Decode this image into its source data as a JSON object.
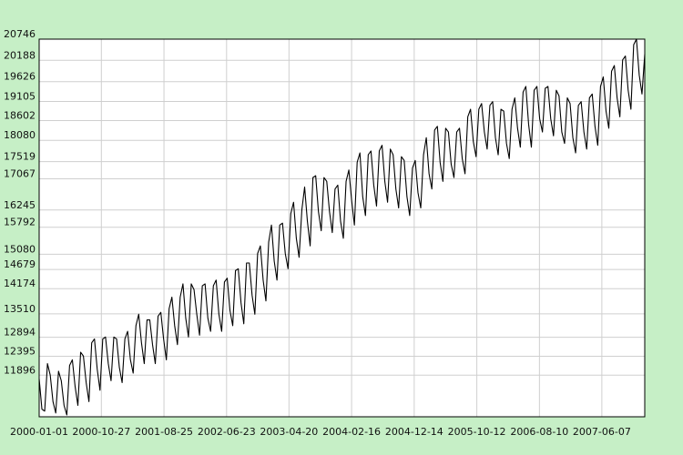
{
  "chart_data": {
    "type": "line",
    "title": "",
    "xlabel": "",
    "ylabel": "",
    "x_tick_labels": [
      "2000-01-01",
      "2000-10-27",
      "2001-08-25",
      "2002-06-23",
      "2003-04-20",
      "2004-02-16",
      "2004-12-14",
      "2005-10-12",
      "2006-08-10",
      "2007-06-07"
    ],
    "y_tick_labels": [
      20746,
      20188,
      19626,
      19105,
      18602,
      18080,
      17519,
      17067,
      16245,
      15792,
      15080,
      14679,
      14174,
      13510,
      12894,
      12395,
      11896
    ],
    "xlim": [
      "2000-01-01",
      "2007-12-31"
    ],
    "ylim": [
      10800,
      20746
    ],
    "grid": true,
    "series": [
      {
        "x_start": "2000-01-01",
        "x_end": "2007-12-31",
        "values": [
          11800,
          11000,
          10950,
          12200,
          11900,
          11200,
          10900,
          12000,
          11750,
          11100,
          10850,
          12150,
          12300,
          11600,
          11100,
          12500,
          12400,
          11700,
          11200,
          12750,
          12850,
          12050,
          11500,
          12850,
          12900,
          12200,
          11750,
          12900,
          12850,
          12100,
          11700,
          12850,
          13050,
          12300,
          11950,
          13200,
          13500,
          12750,
          12200,
          13350,
          13350,
          12700,
          12200,
          13450,
          13550,
          12850,
          12300,
          13650,
          13950,
          13200,
          12700,
          13950,
          14300,
          13400,
          12900,
          14300,
          14150,
          13500,
          12950,
          14250,
          14300,
          13400,
          13050,
          14250,
          14400,
          13500,
          13050,
          14350,
          14450,
          13600,
          13200,
          14650,
          14700,
          13800,
          13250,
          14850,
          14850,
          14000,
          13500,
          15100,
          15300,
          14400,
          13850,
          15400,
          15850,
          14900,
          14400,
          15850,
          15900,
          15100,
          14700,
          16150,
          16450,
          15500,
          15000,
          16250,
          16850,
          15950,
          15300,
          17100,
          17150,
          16200,
          15700,
          17100,
          17000,
          16200,
          15650,
          16800,
          16900,
          15950,
          15500,
          17000,
          17300,
          16500,
          15850,
          17500,
          17750,
          16600,
          16100,
          17700,
          17800,
          16900,
          16350,
          17800,
          17950,
          17000,
          16450,
          17850,
          17700,
          16800,
          16300,
          17650,
          17550,
          16600,
          16100,
          17350,
          17550,
          16700,
          16300,
          17700,
          18150,
          17200,
          16800,
          18350,
          18450,
          17500,
          17000,
          18400,
          18300,
          17450,
          17100,
          18300,
          18400,
          17600,
          17200,
          18700,
          18900,
          18050,
          17650,
          18900,
          19050,
          18300,
          17850,
          19000,
          19100,
          18150,
          17700,
          18900,
          18850,
          18000,
          17600,
          18900,
          19200,
          18400,
          17900,
          19350,
          19500,
          18500,
          17900,
          19400,
          19500,
          18650,
          18300,
          19450,
          19500,
          18650,
          18200,
          19400,
          19250,
          18300,
          18000,
          19200,
          19050,
          18150,
          17750,
          19000,
          19100,
          18300,
          17850,
          19200,
          19300,
          18450,
          17950,
          19500,
          19750,
          18850,
          18400,
          19900,
          20050,
          19200,
          18700,
          20200,
          20300,
          19400,
          18900,
          20600,
          20746,
          19800,
          19300,
          20350
        ]
      }
    ]
  }
}
